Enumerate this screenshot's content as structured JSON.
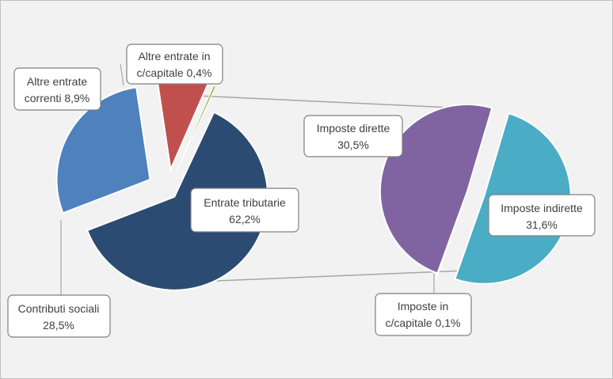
{
  "chart_data": {
    "type": "pie",
    "subtype": "pie-of-pie",
    "title": "",
    "slices": [
      {
        "name": "Entrate tributarie",
        "value": 62.2,
        "label": "Entrate tributarie 62,2%",
        "color": "#2c4b72"
      },
      {
        "name": "Contributi sociali",
        "value": 28.5,
        "label": "Contributi sociali 28,5%",
        "color": "#4f81bd"
      },
      {
        "name": "Altre entrate correnti",
        "value": 8.9,
        "label": "Altre entrate correnti 8,9%",
        "color": "#c0504d"
      },
      {
        "name": "Altre entrate in c/capitale",
        "value": 0.4,
        "label": "Altre entrate in c/capitale 0,4%",
        "color": "#9bbb59"
      }
    ],
    "breakdown": {
      "of": "Entrate tributarie",
      "slices": [
        {
          "name": "Imposte dirette",
          "value": 30.5,
          "label": "Imposte dirette 30,5%",
          "color": "#8064a2"
        },
        {
          "name": "Imposte indirette",
          "value": 31.6,
          "label": "Imposte indirette 31,6%",
          "color": "#4bacc6"
        },
        {
          "name": "Imposte in c/capitale",
          "value": 0.1,
          "label": "Imposte in c/capitale 0,1%",
          "color": "#6c8fb8"
        }
      ]
    },
    "legend": "none",
    "data_labels": "callouts"
  },
  "callouts": {
    "entrate_tributarie": [
      "Entrate tributarie",
      "62,2%"
    ],
    "contributi_sociali": [
      "Contributi sociali",
      "28,5%"
    ],
    "altre_correnti": [
      "Altre entrate",
      "correnti 8,9%"
    ],
    "altre_capitale": [
      "Altre entrate in",
      "c/capitale 0,4%"
    ],
    "imposte_dirette": [
      "Imposte dirette",
      "30,5%"
    ],
    "imposte_indirette": [
      "Imposte indirette",
      "31,6%"
    ],
    "imposte_capitale": [
      "Imposte in",
      "c/capitale 0,1%"
    ]
  }
}
